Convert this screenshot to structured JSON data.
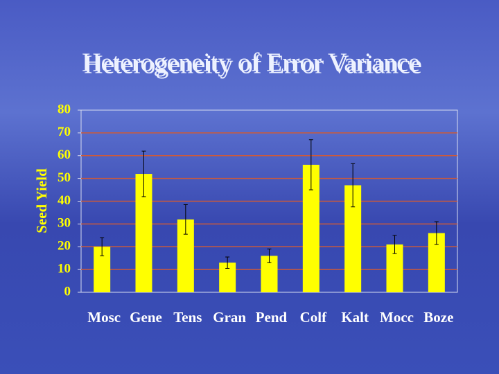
{
  "chart_data": {
    "type": "bar",
    "title": "Heterogeneity of Error Variance",
    "y_label": "Seed Yield",
    "categories": [
      "Mosc",
      "Gene",
      "Tens",
      "Gran",
      "Pend",
      "Colf",
      "Kalt",
      "Mocc",
      "Boze"
    ],
    "values": [
      20,
      52,
      32,
      13,
      16,
      56,
      47,
      21,
      26
    ],
    "errors": [
      4,
      10,
      6.5,
      2.5,
      3,
      11,
      9.5,
      4,
      5
    ],
    "color": "#ffff00",
    "ylim": [
      0,
      80
    ],
    "yticks": [
      0,
      10,
      20,
      30,
      40,
      50,
      60,
      70,
      80
    ],
    "grid": true,
    "grid_color": "#cc5a3a"
  }
}
